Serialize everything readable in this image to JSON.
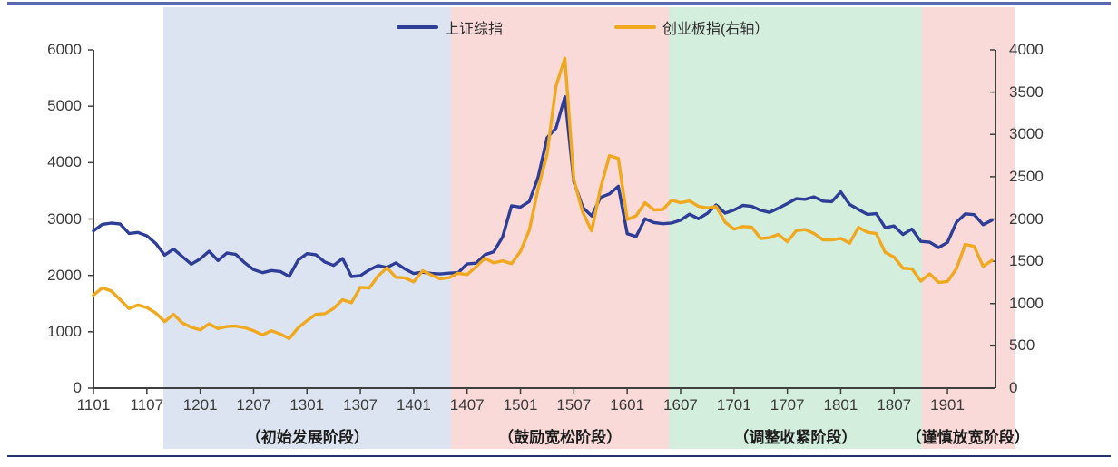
{
  "page": {
    "top_rule_color": "#5a69b0",
    "bottom_rule_color": "#243272"
  },
  "chart_data": {
    "type": "line",
    "title": "",
    "x_start": "2011-01",
    "x_interval": "monthly",
    "x_tick_labels": [
      "1101",
      "1107",
      "1201",
      "1207",
      "1301",
      "1307",
      "1401",
      "1407",
      "1501",
      "1507",
      "1601",
      "1607",
      "1701",
      "1707",
      "1801",
      "1807",
      "1901"
    ],
    "left_axis": {
      "min": 0,
      "max": 6000,
      "step": 1000,
      "ticks": [
        0,
        1000,
        2000,
        3000,
        4000,
        5000,
        6000
      ]
    },
    "right_axis": {
      "min": 0,
      "max": 4000,
      "step": 500,
      "ticks": [
        0,
        500,
        1000,
        1500,
        2000,
        2500,
        3000,
        3500,
        4000
      ]
    },
    "grid": false,
    "legend_position": "top-center",
    "legend": [
      {
        "label": "上证综指",
        "color": "#2e3d96"
      },
      {
        "label": "创业板指(右轴）",
        "color": "#f0a81f"
      }
    ],
    "series": [
      {
        "id": "sse",
        "name": "上证综指",
        "axis": "left",
        "color": "#2e3d96",
        "values": [
          2790,
          2905,
          2928,
          2911,
          2743,
          2762,
          2701,
          2567,
          2359,
          2468,
          2333,
          2199,
          2293,
          2428,
          2263,
          2396,
          2372,
          2225,
          2103,
          2047,
          2086,
          2068,
          1980,
          2269,
          2385,
          2366,
          2237,
          2177,
          2301,
          1979,
          1994,
          2098,
          2175,
          2141,
          2221,
          2116,
          2033,
          2056,
          2033,
          2026,
          2039,
          2048,
          2202,
          2217,
          2364,
          2420,
          2683,
          3235,
          3210,
          3310,
          3748,
          4442,
          4612,
          5166,
          3664,
          3206,
          3053,
          3383,
          3445,
          3580,
          2738,
          2688,
          3004,
          2938,
          2917,
          2930,
          2979,
          3085,
          3005,
          3100,
          3250,
          3104,
          3159,
          3242,
          3223,
          3155,
          3117,
          3192,
          3273,
          3361,
          3349,
          3393,
          3317,
          3307,
          3481,
          3259,
          3169,
          3082,
          3095,
          2847,
          2876,
          2725,
          2821,
          2603,
          2588,
          2494,
          2585,
          2941,
          3091,
          3078,
          2899,
          2979
        ]
      },
      {
        "id": "chinext",
        "name": "创业板指",
        "axis": "right",
        "color": "#f0a81f",
        "values": [
          1100,
          1186,
          1148,
          1046,
          941,
          983,
          952,
          889,
          786,
          873,
          770,
          720,
          689,
          760,
          703,
          729,
          733,
          715,
          680,
          629,
          679,
          640,
          585,
          713,
          798,
          873,
          880,
          942,
          1046,
          1009,
          1192,
          1184,
          1327,
          1423,
          1310,
          1304,
          1257,
          1389,
          1336,
          1292,
          1307,
          1359,
          1342,
          1434,
          1536,
          1482,
          1506,
          1471,
          1616,
          1868,
          2365,
          2768,
          3571,
          3900,
          2469,
          2077,
          1859,
          2365,
          2750,
          2714,
          1994,
          2037,
          2192,
          2107,
          2112,
          2222,
          2192,
          2215,
          2150,
          2131,
          2147,
          1962,
          1880,
          1911,
          1904,
          1768,
          1779,
          1818,
          1731,
          1862,
          1876,
          1828,
          1753,
          1752,
          1771,
          1715,
          1900,
          1843,
          1827,
          1605,
          1550,
          1418,
          1411,
          1265,
          1351,
          1250,
          1261,
          1410,
          1700,
          1676,
          1440,
          1511
        ]
      }
    ],
    "phases": [
      {
        "label": "（初始发展阶段）",
        "color": "#dde4f1",
        "start_month": 7.9,
        "end_month": 40.2
      },
      {
        "label": "（鼓励宽松阶段）",
        "color": "#f9dad8",
        "start_month": 40.2,
        "end_month": 64.7
      },
      {
        "label": "（调整收紧阶段）",
        "color": "#d4eedd",
        "start_month": 64.7,
        "end_month": 93.1
      },
      {
        "label": "（谨慎放宽阶段）",
        "color": "#f9dad8",
        "start_month": 93.1,
        "end_month": 103.5
      }
    ]
  }
}
